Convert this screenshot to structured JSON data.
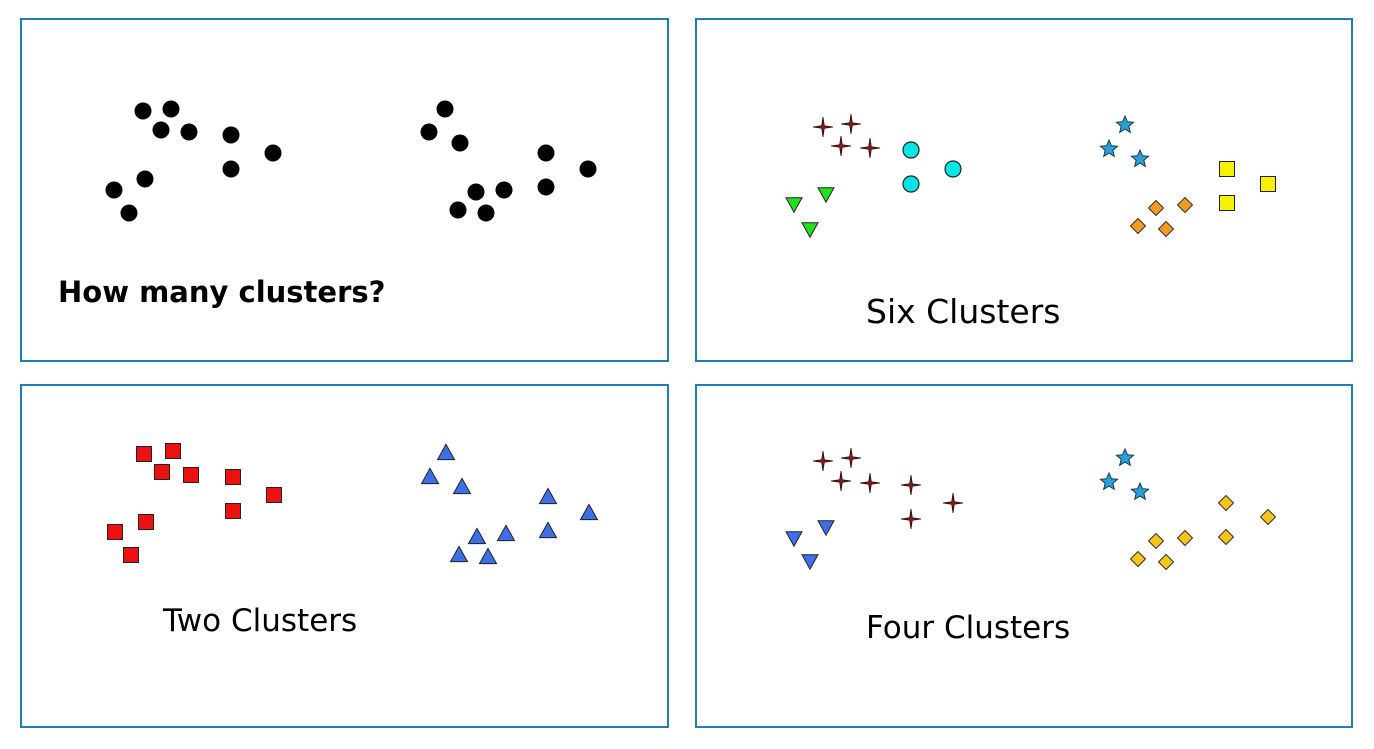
{
  "colors": {
    "border": "#1f7fb0",
    "black": "#000000",
    "red": "#ee1111",
    "blue": "#3f6fe8",
    "cross": "#8b1a1a",
    "cyan": "#00e6e6",
    "green": "#22e01c",
    "star": "#2aa0d8",
    "orange": "#f59a23",
    "yellow": "#f7f000",
    "gold": "#f5c518"
  },
  "panels": {
    "question": {
      "caption": "How many clusters?",
      "marker_style": "black filled circle"
    },
    "six": {
      "caption": "Six Clusters",
      "cluster_count": 6,
      "markers": [
        "red four-point star",
        "cyan circle",
        "green down-triangle",
        "blue star",
        "orange diamond",
        "yellow square"
      ]
    },
    "two": {
      "caption": "Two Clusters",
      "cluster_count": 2,
      "markers": [
        "red square",
        "blue up-triangle"
      ]
    },
    "four": {
      "caption": "Four Clusters",
      "cluster_count": 4,
      "markers": [
        "red four-point star",
        "blue down-triangle",
        "blue star",
        "gold diamond"
      ]
    }
  }
}
